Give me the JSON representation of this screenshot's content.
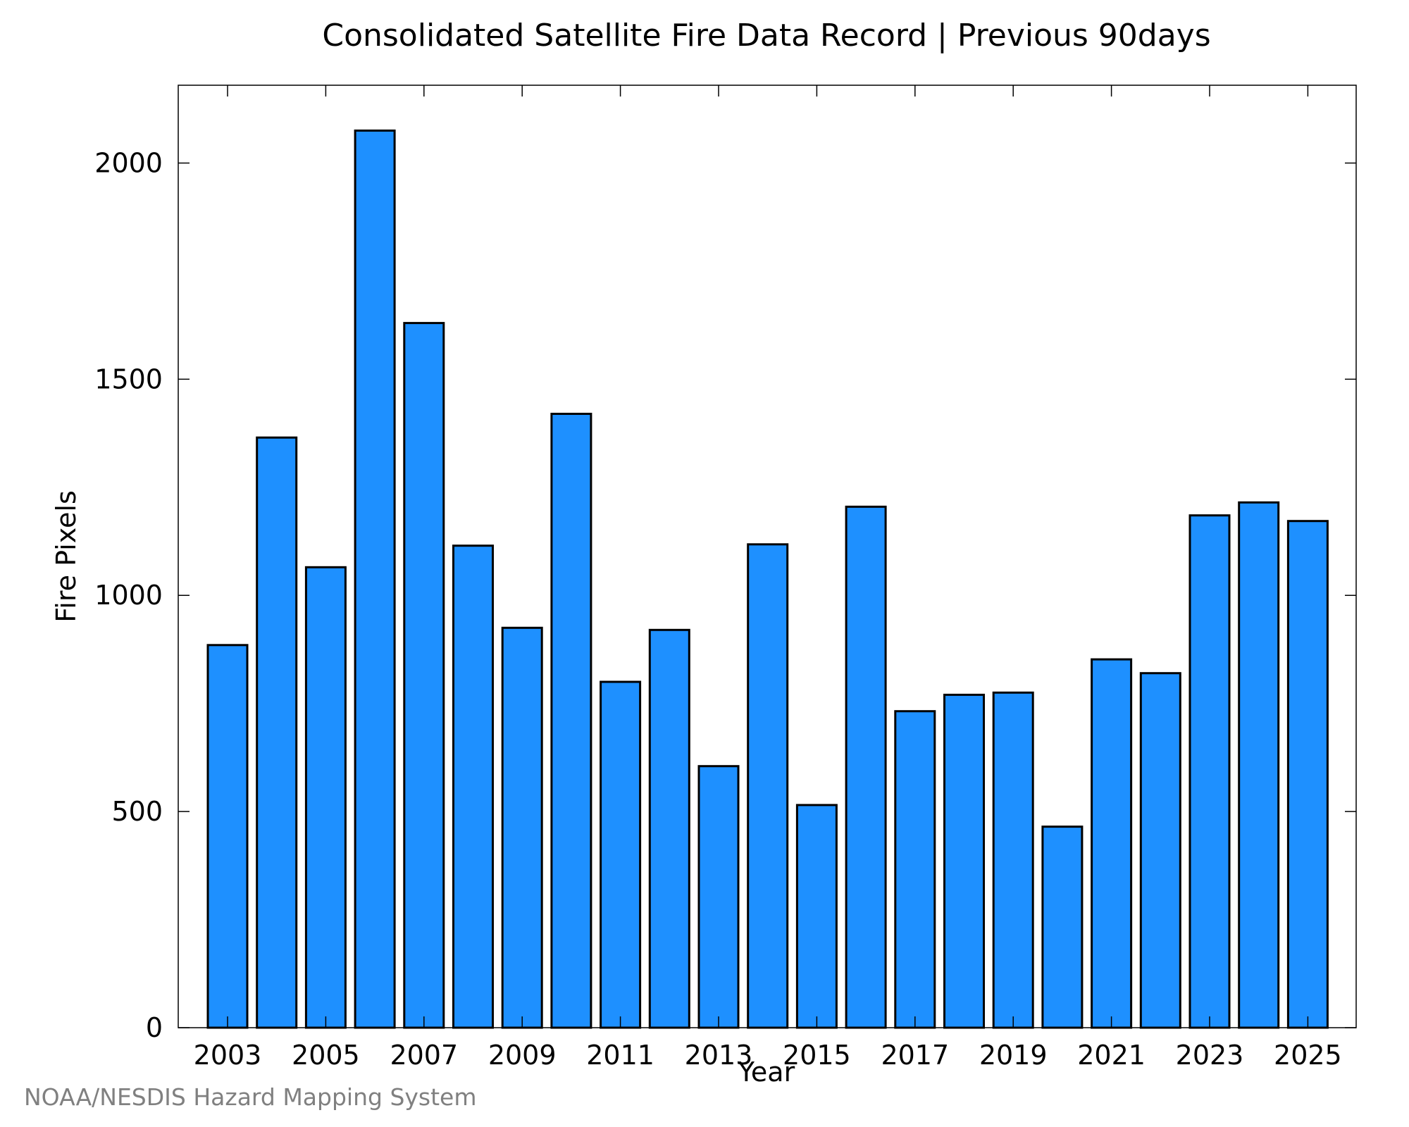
{
  "chart_data": {
    "type": "bar",
    "title": "Consolidated Satellite Fire Data Record | Previous 90days",
    "xlabel": "Year",
    "ylabel": "Fire Pixels",
    "categories": [
      "2003",
      "2004",
      "2005",
      "2006",
      "2007",
      "2008",
      "2009",
      "2010",
      "2011",
      "2012",
      "2013",
      "2014",
      "2015",
      "2016",
      "2017",
      "2018",
      "2019",
      "2020",
      "2021",
      "2022",
      "2023",
      "2024",
      "2025"
    ],
    "x_tick_labels": [
      "2003",
      "2005",
      "2007",
      "2009",
      "2011",
      "2013",
      "2015",
      "2017",
      "2019",
      "2021",
      "2023",
      "2025"
    ],
    "values": [
      885,
      1365,
      1065,
      2075,
      1630,
      1115,
      925,
      1420,
      800,
      920,
      605,
      1118,
      515,
      1205,
      732,
      770,
      775,
      465,
      852,
      820,
      1185,
      1215,
      1172
    ],
    "y_ticks": [
      0,
      500,
      1000,
      1500,
      2000
    ],
    "ylim": [
      0,
      2180
    ],
    "grid": false,
    "bar_color": "#1e90ff"
  },
  "footer": {
    "credit": "NOAA/NESDIS Hazard Mapping System"
  }
}
